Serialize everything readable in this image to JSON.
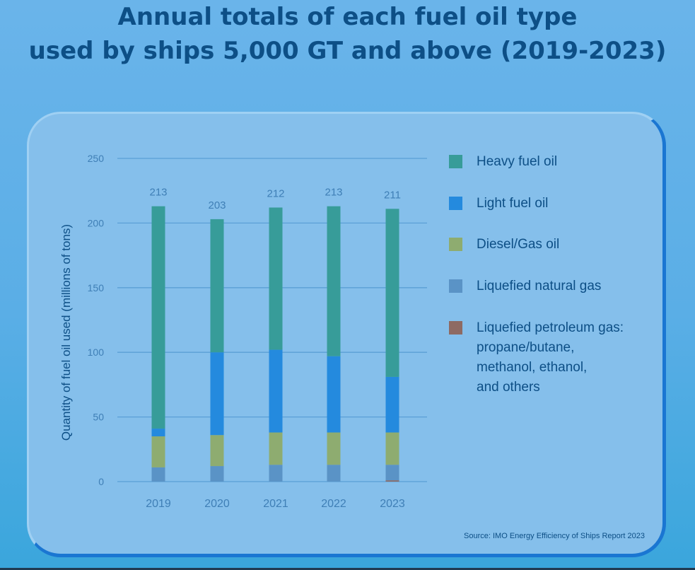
{
  "title_lines": [
    "Annual totals of each fuel oil type",
    "used by ships 5,000 GT and above (2019-2023)"
  ],
  "source": "Source: IMO Energy Efficiency of Ships Report 2023",
  "chart_data": {
    "type": "bar",
    "stacked": true,
    "title": "Annual totals of each fuel oil type used by ships 5,000 GT and above (2019-2023)",
    "xlabel": "",
    "ylabel": "Quantity of fuel oil used (millions of tons)",
    "ylim": [
      0,
      250
    ],
    "yticks": [
      0,
      50,
      100,
      150,
      200,
      250
    ],
    "grid": true,
    "legend_position": "right",
    "categories": [
      "2019",
      "2020",
      "2021",
      "2022",
      "2023"
    ],
    "totals": [
      213,
      203,
      212,
      213,
      211
    ],
    "series": [
      {
        "name": "Liquefied petroleum gas: propane/butane, methanol, ethanol, and others",
        "color": "#8e6a63",
        "values": [
          0,
          0,
          0,
          0,
          1
        ]
      },
      {
        "name": "Liquefied natural gas",
        "color": "#5a93c6",
        "values": [
          11,
          12,
          13,
          13,
          12
        ]
      },
      {
        "name": "Diesel/Gas oil",
        "color": "#8eac70",
        "values": [
          24,
          24,
          25,
          25,
          25
        ]
      },
      {
        "name": "Light fuel oil",
        "color": "#248ade",
        "values": [
          6,
          64,
          64,
          59,
          43
        ]
      },
      {
        "name": "Heavy fuel oil",
        "color": "#379c99",
        "values": [
          172,
          103,
          110,
          116,
          130
        ]
      }
    ],
    "legend_order": [
      "Heavy fuel oil",
      "Light fuel oil",
      "Diesel/Gas oil",
      "Liquefied natural gas",
      "Liquefied petroleum gas: propane/butane, methanol, ethanol, and others"
    ],
    "legend_lines": {
      "Heavy fuel oil": [
        "Heavy fuel oil"
      ],
      "Light fuel oil": [
        "Light fuel oil"
      ],
      "Diesel/Gas oil": [
        "Diesel/Gas oil"
      ],
      "Liquefied natural gas": [
        "Liquefied natural gas"
      ],
      "Liquefied petroleum gas: propane/butane, methanol, ethanol, and others": [
        "Liquefied petroleum gas:",
        "propane/butane,",
        "methanol, ethanol,",
        "and others"
      ]
    }
  }
}
